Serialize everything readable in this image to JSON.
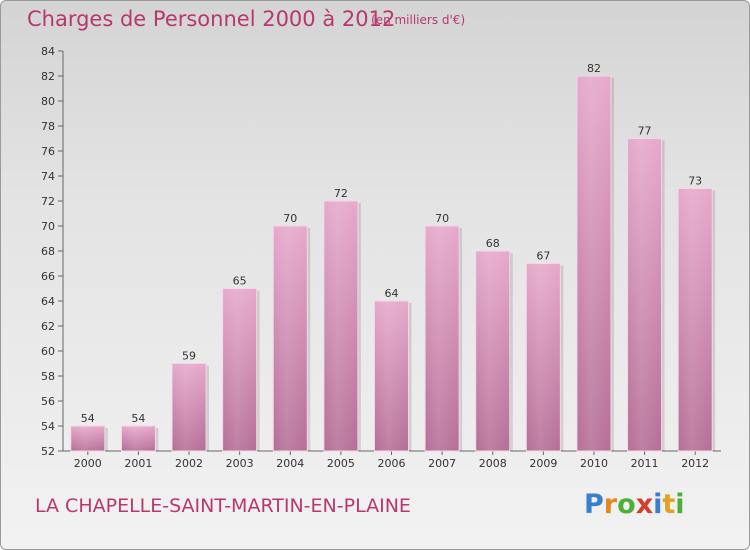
{
  "header": {
    "title": "Charges de Personnel 2000 à 2012",
    "subtitle": "(en milliers d'€)"
  },
  "footer": {
    "commune": "LA CHAPELLE-SAINT-MARTIN-EN-PLAINE",
    "logo_letters": [
      {
        "ch": "P",
        "color": "#3a7fcf"
      },
      {
        "ch": "r",
        "color": "#e0891f"
      },
      {
        "ch": "o",
        "color": "#4caf3a"
      },
      {
        "ch": "x",
        "color": "#d43c2c"
      },
      {
        "ch": "i",
        "color": "#3a7fcf"
      },
      {
        "ch": "t",
        "color": "#e0a21f"
      },
      {
        "ch": "i",
        "color": "#4caf3a"
      }
    ]
  },
  "chart_data": {
    "type": "bar",
    "title": "Charges de Personnel 2000 à 2012",
    "subtitle": "(en milliers d'€)",
    "categories": [
      "2000",
      "2001",
      "2002",
      "2003",
      "2004",
      "2005",
      "2006",
      "2007",
      "2008",
      "2009",
      "2010",
      "2011",
      "2012"
    ],
    "values": [
      54,
      54,
      59,
      65,
      70,
      72,
      64,
      70,
      68,
      67,
      82,
      77,
      73
    ],
    "ylim": [
      52,
      84
    ],
    "yticks": [
      52,
      54,
      56,
      58,
      60,
      62,
      64,
      66,
      68,
      70,
      72,
      74,
      76,
      78,
      80,
      82,
      84
    ],
    "grid": false,
    "bar_color": "#d98db7"
  }
}
